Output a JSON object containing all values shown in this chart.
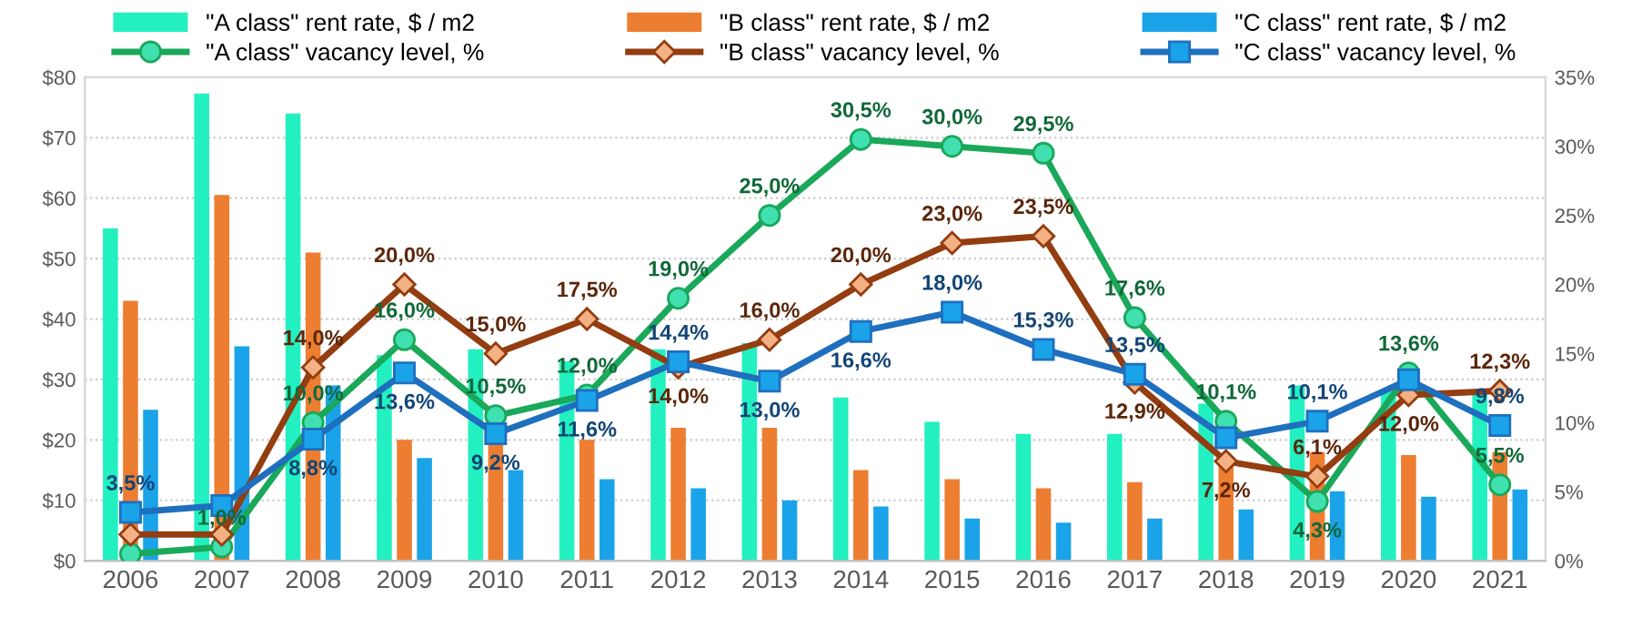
{
  "chart_data": {
    "type": "bar",
    "categories": [
      "2006",
      "2007",
      "2008",
      "2009",
      "2010",
      "2011",
      "2012",
      "2013",
      "2014",
      "2015",
      "2016",
      "2017",
      "2018",
      "2019",
      "2020",
      "2021"
    ],
    "series": [
      {
        "name": "\"A class\" rent rate, $ / m2",
        "type": "bar",
        "color": "#22f0c0",
        "values": [
          55,
          77.3,
          74,
          34,
          35,
          33,
          35,
          36,
          27,
          23,
          21,
          21,
          26,
          29,
          28,
          28
        ]
      },
      {
        "name": "\"B class\" rent rate, $ / m2",
        "type": "bar",
        "color": "#ed7d31",
        "values": [
          43,
          60.5,
          51,
          20,
          20,
          20,
          22,
          22,
          15,
          13.5,
          12,
          13,
          16,
          18,
          17.5,
          18
        ]
      },
      {
        "name": "\"C class\" rent rate, $ / m2",
        "type": "bar",
        "color": "#1aa3e8",
        "values": [
          25,
          35.5,
          29,
          17,
          15,
          13.5,
          12,
          10,
          9,
          7,
          6.3,
          7,
          8.5,
          11.5,
          10.6,
          11.8
        ]
      },
      {
        "name": "\"A class\" vacancy level, %",
        "type": "line",
        "axis": "y2",
        "color": "#1aa85a",
        "marker": "circle",
        "values": [
          0.5,
          1.0,
          10.0,
          16.0,
          10.5,
          12.0,
          19.0,
          25.0,
          30.5,
          30.0,
          29.5,
          17.6,
          10.1,
          4.3,
          13.6,
          5.5
        ],
        "value_labels": [
          null,
          "1,0%",
          "10,0%",
          "16,0%",
          "10,5%",
          "12,0%",
          "19,0%",
          "25,0%",
          "30,5%",
          "30,0%",
          "29,5%",
          "17,6%",
          "10,1%",
          "4,3%",
          "13,6%",
          "5,5%"
        ]
      },
      {
        "name": "\"B class\" vacancy level, %",
        "type": "line",
        "axis": "y2",
        "color": "#933d10",
        "marker": "diamond",
        "values": [
          1.9,
          1.9,
          14.0,
          20.0,
          15.0,
          17.5,
          14.0,
          16.0,
          20.0,
          23.0,
          23.5,
          12.9,
          7.2,
          6.1,
          12.0,
          12.3
        ],
        "value_labels": [
          null,
          null,
          "14,0%",
          "20,0%",
          "15,0%",
          "17,5%",
          "14,0%",
          "16,0%",
          "20,0%",
          "23,0%",
          "23,5%",
          "12,9%",
          "7,2%",
          "6,1%",
          "12,0%",
          "12,3%"
        ]
      },
      {
        "name": "\"C class\" vacancy level, %",
        "type": "line",
        "axis": "y2",
        "color": "#1f6fbf",
        "marker": "square",
        "values": [
          3.5,
          4.0,
          8.8,
          13.6,
          9.2,
          11.6,
          14.4,
          13.0,
          16.6,
          18.0,
          15.3,
          13.5,
          8.9,
          10.1,
          13.1,
          9.8
        ],
        "value_labels": [
          "3,5%",
          null,
          "8,8%",
          "13,6%",
          "9,2%",
          "11,6%",
          "14,4%",
          "13,0%",
          "16,6%",
          "18,0%",
          "15,3%",
          "13,5%",
          null,
          "10,1%",
          null,
          "9,8%"
        ]
      }
    ],
    "ylim": [
      0,
      80
    ],
    "yticks": [
      {
        "value": 0,
        "label": "$0"
      },
      {
        "value": 10,
        "label": "$10"
      },
      {
        "value": 20,
        "label": "$20"
      },
      {
        "value": 30,
        "label": "$30"
      },
      {
        "value": 40,
        "label": "$40"
      },
      {
        "value": 50,
        "label": "$50"
      },
      {
        "value": 60,
        "label": "$60"
      },
      {
        "value": 70,
        "label": "$70"
      },
      {
        "value": 80,
        "label": "$80"
      }
    ],
    "y2lim": [
      0,
      35
    ],
    "y2ticks": [
      {
        "value": 0,
        "label": "0%"
      },
      {
        "value": 5,
        "label": "5%"
      },
      {
        "value": 10,
        "label": "10%"
      },
      {
        "value": 15,
        "label": "15%"
      },
      {
        "value": 20,
        "label": "20%"
      },
      {
        "value": 25,
        "label": "25%"
      },
      {
        "value": 30,
        "label": "30%"
      },
      {
        "value": 35,
        "label": "35%"
      }
    ],
    "grid": "y",
    "legend": "top",
    "line_style": "solid"
  }
}
